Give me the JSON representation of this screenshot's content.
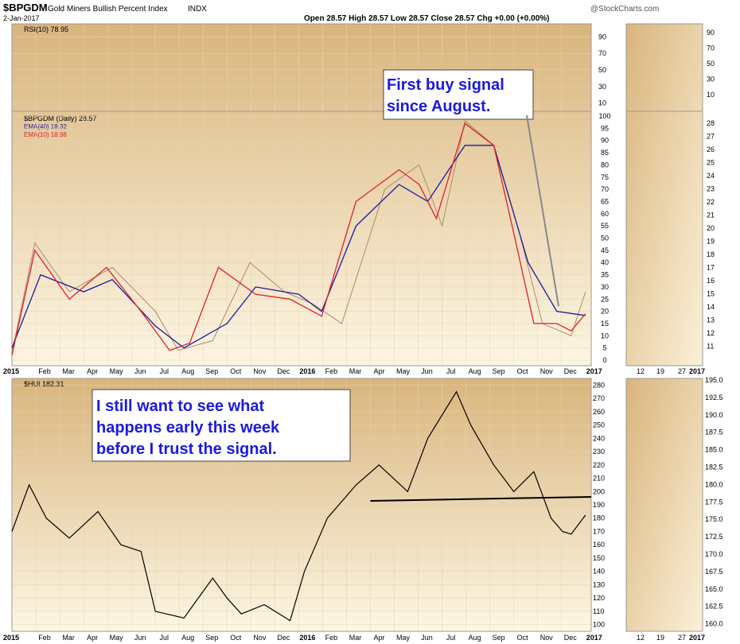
{
  "header": {
    "symbol": "$BPGDM",
    "name": "Gold Miners Bullish Percent Index",
    "exchange": "INDX",
    "date": "2-Jan-2017",
    "watermark": "@StockCharts.com",
    "ohlc": "Open 28.57  High 28.57  Low 28.57  Close 28.57  Chg +0.00 (+0.00%)"
  },
  "panels": {
    "rsi_label": "RSI(10) 78.95",
    "bpgdm_label": "$BPGDM (Daily) 28.57",
    "ema40_label": "EMA(40) 18.32",
    "ema10_label": "EMA(10) 18.98",
    "hui_label": "$HUI 182.31"
  },
  "annotations": {
    "signal": [
      "First buy signal",
      "since August."
    ],
    "caution": [
      "I still want to see what",
      "happens early this week",
      "before I trust the signal."
    ]
  },
  "colors": {
    "ema40": "#1a1aa0",
    "ema10": "#e0202a",
    "price": "#b08a6a",
    "note_text": "#1a1ae0"
  },
  "chart_data": [
    {
      "type": "line",
      "title": "$BPGDM (Daily) 28.57",
      "x_ticks": [
        "2015",
        "Feb",
        "Mar",
        "Apr",
        "May",
        "Jun",
        "Jul",
        "Aug",
        "Sep",
        "Oct",
        "Nov",
        "Dec",
        "2016",
        "Feb",
        "Mar",
        "Apr",
        "May",
        "Jun",
        "Jul",
        "Aug",
        "Sep",
        "Oct",
        "Nov",
        "Dec",
        "2017"
      ],
      "ylim": [
        0,
        100
      ],
      "y_ticks": [
        0,
        5,
        10,
        15,
        20,
        25,
        30,
        35,
        40,
        45,
        50,
        55,
        60,
        65,
        70,
        75,
        80,
        85,
        90,
        95,
        100
      ],
      "series": [
        {
          "name": "$BPGDM",
          "x": [
            2015.0,
            2015.08,
            2015.2,
            2015.35,
            2015.5,
            2015.58,
            2015.7,
            2015.83,
            2015.95,
            2016.05,
            2016.15,
            2016.3,
            2016.42,
            2016.5,
            2016.58,
            2016.68,
            2016.77,
            2016.85,
            2016.95,
            2017.0
          ],
          "values": [
            3,
            48,
            28,
            38,
            20,
            4,
            8,
            40,
            28,
            23,
            15,
            70,
            80,
            55,
            98,
            88,
            52,
            15,
            10,
            28
          ]
        },
        {
          "name": "EMA(40)",
          "x": [
            2015.0,
            2015.1,
            2015.25,
            2015.35,
            2015.5,
            2015.6,
            2015.75,
            2015.85,
            2016.0,
            2016.08,
            2016.2,
            2016.35,
            2016.45,
            2016.58,
            2016.68,
            2016.8,
            2016.9,
            2017.0
          ],
          "values": [
            5,
            35,
            28,
            33,
            14,
            5,
            15,
            30,
            27,
            20,
            55,
            72,
            65,
            88,
            88,
            40,
            20,
            18.32
          ]
        },
        {
          "name": "EMA(10)",
          "x": [
            2015.0,
            2015.08,
            2015.2,
            2015.33,
            2015.45,
            2015.55,
            2015.62,
            2015.72,
            2015.85,
            2015.97,
            2016.08,
            2016.2,
            2016.35,
            2016.42,
            2016.48,
            2016.58,
            2016.68,
            2016.75,
            2016.82,
            2016.9,
            2016.95,
            2017.0
          ],
          "values": [
            2,
            45,
            25,
            38,
            20,
            4,
            7,
            38,
            27,
            25,
            18,
            65,
            78,
            72,
            58,
            97,
            88,
            52,
            15,
            15,
            12,
            18.98
          ]
        }
      ]
    },
    {
      "type": "line",
      "title": "RSI(10) 78.95",
      "y_ticks": [
        90,
        70,
        50,
        30,
        10
      ],
      "ylim": [
        0,
        100
      ]
    },
    {
      "type": "line",
      "title": "$HUI 182.31",
      "x_ticks": [
        "2015",
        "Feb",
        "Mar",
        "Apr",
        "May",
        "Jun",
        "Jul",
        "Aug",
        "Sep",
        "Oct",
        "Nov",
        "Dec",
        "2016",
        "Feb",
        "Mar",
        "Apr",
        "May",
        "Jun",
        "Jul",
        "Aug",
        "Sep",
        "Oct",
        "Nov",
        "Dec",
        "2017"
      ],
      "ylim": [
        95,
        285
      ],
      "y_ticks": [
        100,
        110,
        120,
        130,
        140,
        150,
        160,
        170,
        180,
        190,
        200,
        210,
        220,
        230,
        240,
        250,
        260,
        270,
        280
      ],
      "series": [
        {
          "name": "$HUI",
          "x": [
            2015.0,
            2015.06,
            2015.12,
            2015.2,
            2015.3,
            2015.38,
            2015.45,
            2015.5,
            2015.6,
            2015.7,
            2015.75,
            2015.8,
            2015.88,
            2015.97,
            2016.02,
            2016.1,
            2016.2,
            2016.28,
            2016.38,
            2016.45,
            2016.55,
            2016.6,
            2016.68,
            2016.75,
            2016.82,
            2016.88,
            2016.92,
            2016.95,
            2017.0
          ],
          "values": [
            170,
            205,
            180,
            165,
            185,
            160,
            155,
            110,
            105,
            135,
            120,
            108,
            115,
            103,
            140,
            180,
            205,
            220,
            200,
            240,
            275,
            250,
            220,
            200,
            215,
            180,
            170,
            168,
            182.31
          ]
        }
      ],
      "trendline": {
        "x": [
          2016.25,
          2017.0
        ],
        "values": [
          193,
          196
        ]
      }
    }
  ],
  "side_panels": {
    "top_x_ticks": [
      "12",
      "19",
      "27",
      "2017"
    ],
    "top_right_y_ticks": [
      "28",
      "27",
      "26",
      "25",
      "24",
      "23",
      "22",
      "21",
      "20",
      "19",
      "18",
      "17",
      "16",
      "15",
      "14",
      "13",
      "12",
      "11"
    ],
    "top_rsi_y_ticks": [
      "90",
      "70",
      "50",
      "30",
      "10"
    ],
    "bottom_y_ticks": [
      "195.0",
      "192.5",
      "190.0",
      "187.5",
      "185.0",
      "182.5",
      "180.0",
      "177.5",
      "175.0",
      "172.5",
      "170.0",
      "167.5",
      "165.0",
      "162.5",
      "160.0"
    ],
    "bottom_x_ticks": [
      "12",
      "19",
      "27",
      "2017"
    ]
  }
}
